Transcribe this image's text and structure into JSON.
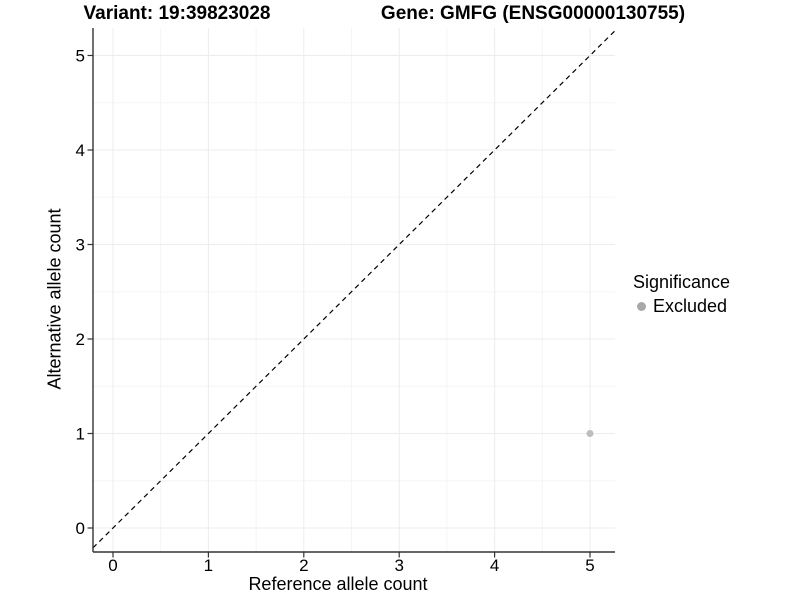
{
  "chart_data": {
    "type": "scatter",
    "title_left": "Variant: 19:39823028",
    "title_right": "Gene: GMFG (ENSG00000130755)",
    "xlabel": "Reference allele count",
    "ylabel": "Alternative allele count",
    "xlim": [
      -0.21,
      5.26
    ],
    "ylim": [
      -0.25,
      5.29
    ],
    "x_ticks": [
      0,
      1,
      2,
      3,
      4,
      5
    ],
    "y_ticks": [
      0,
      1,
      2,
      3,
      4,
      5
    ],
    "x_minor": [
      0.5,
      1.5,
      2.5,
      3.5,
      4.5
    ],
    "y_minor": [
      0.5,
      1.5,
      2.5,
      3.5,
      4.5
    ],
    "grid": "major+minor",
    "series": [
      {
        "name": "Excluded",
        "color": "#bdbdbd",
        "points": [
          {
            "x": 5,
            "y": 1
          }
        ]
      }
    ],
    "reference_line": {
      "type": "identity",
      "style": "dashed",
      "color": "#000000"
    },
    "legend": {
      "title": "Significance",
      "position": "right",
      "items": [
        {
          "label": "Excluded",
          "color": "#a8a8a8"
        }
      ]
    }
  },
  "colors": {
    "background": "#ffffff",
    "grid_major": "#ececec",
    "grid_minor": "#f5f5f5",
    "axis": "#333333",
    "text": "#000000"
  }
}
